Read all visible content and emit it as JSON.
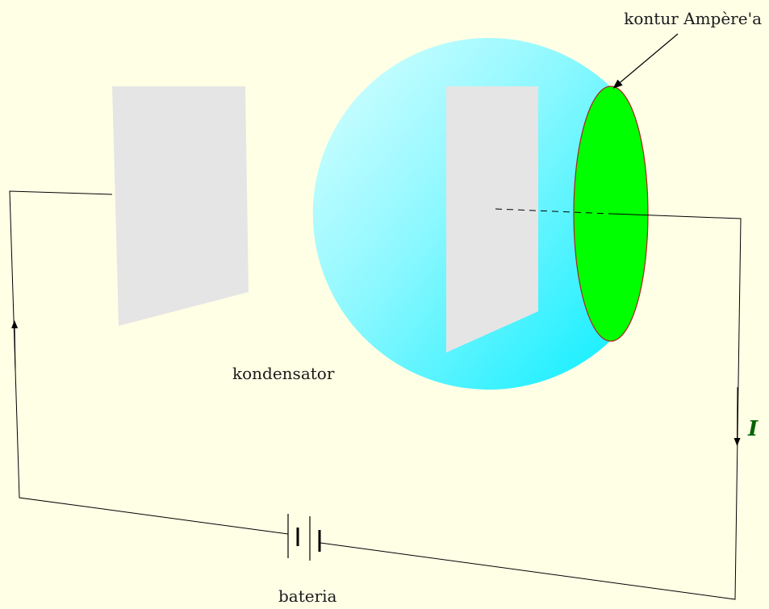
{
  "labels": {
    "contour": "kontur Ampère'a",
    "capacitor": "kondensator",
    "battery": "bateria",
    "current": "I"
  },
  "colors": {
    "background": "#ffffe6",
    "plate": "#e5e5e5",
    "sphere_light": "#c8ffff",
    "sphere_dark": "#1ef0ff",
    "contour_fill": "#00ff00",
    "contour_stroke": "#b22222",
    "current_label": "#006400",
    "wire": "#000000"
  }
}
